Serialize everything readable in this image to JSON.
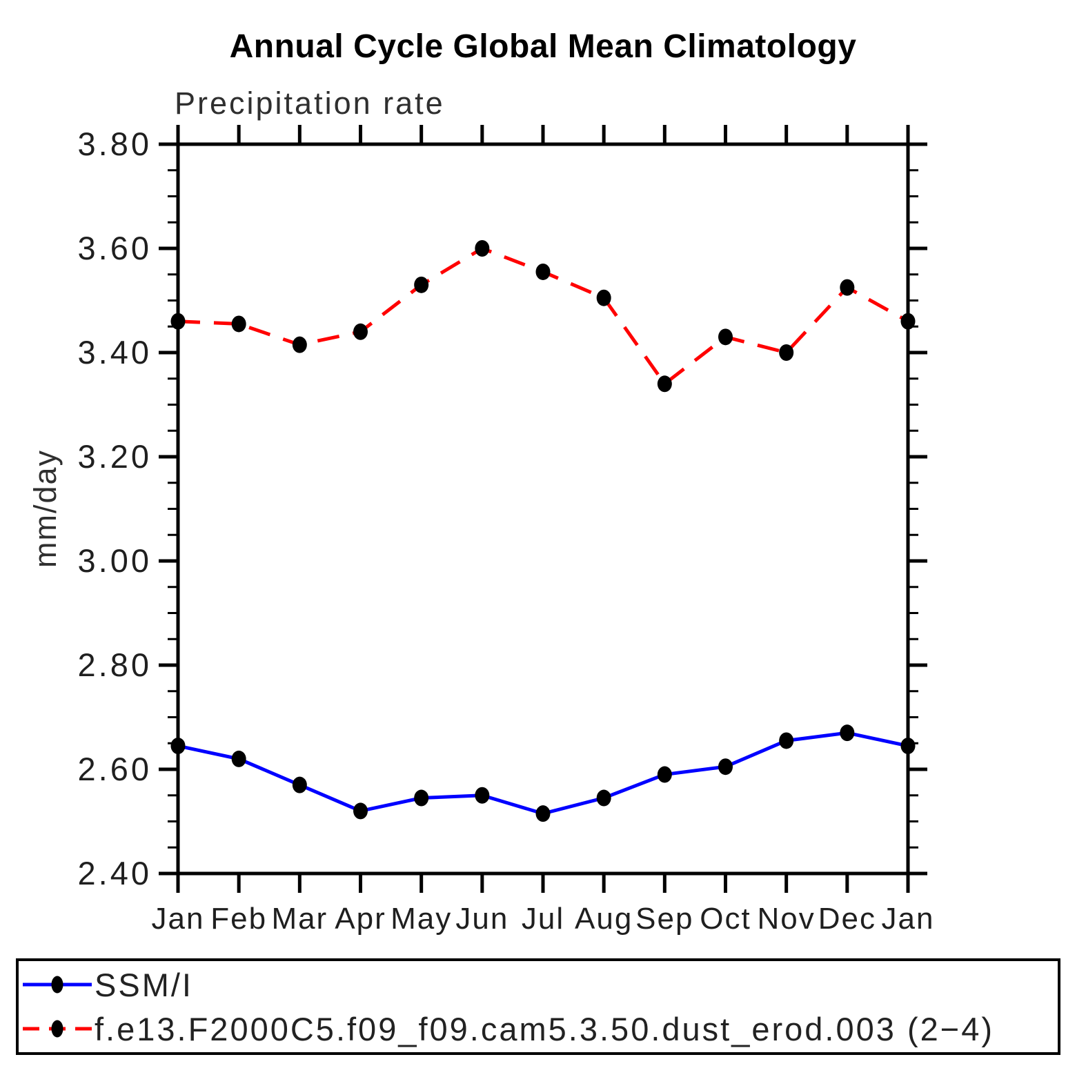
{
  "chart_data": {
    "type": "line",
    "title": "Annual Cycle Global Mean Climatology",
    "subtitle": "Precipitation rate",
    "ylabel": "mm/day",
    "xlabel": "",
    "categories": [
      "Jan",
      "Feb",
      "Mar",
      "Apr",
      "May",
      "Jun",
      "Jul",
      "Aug",
      "Sep",
      "Oct",
      "Nov",
      "Dec",
      "Jan"
    ],
    "ylim": [
      2.4,
      3.8
    ],
    "ytick_major_step": 0.2,
    "ytick_minor_step": 0.05,
    "ytick_labels": [
      "2.40",
      "2.60",
      "2.80",
      "3.00",
      "3.20",
      "3.40",
      "3.60",
      "3.80"
    ],
    "grid": false,
    "legend_position": "bottom",
    "axis_color": "#000000",
    "series": [
      {
        "name": "SSM/I",
        "color": "#0000ff",
        "line_style": "solid",
        "marker": "filled-circle",
        "marker_color": "#000000",
        "values": [
          2.645,
          2.62,
          2.57,
          2.52,
          2.545,
          2.55,
          2.515,
          2.545,
          2.59,
          2.605,
          2.655,
          2.67,
          2.645
        ]
      },
      {
        "name": "f.e13.F2000C5.f09_f09.cam5.3.50.dust_erod.003 (2−4)",
        "color": "#ff0000",
        "line_style": "dashed",
        "marker": "filled-circle",
        "marker_color": "#000000",
        "values": [
          3.46,
          3.455,
          3.415,
          3.44,
          3.53,
          3.6,
          3.555,
          3.505,
          3.34,
          3.43,
          3.4,
          3.525,
          3.46
        ]
      }
    ]
  }
}
